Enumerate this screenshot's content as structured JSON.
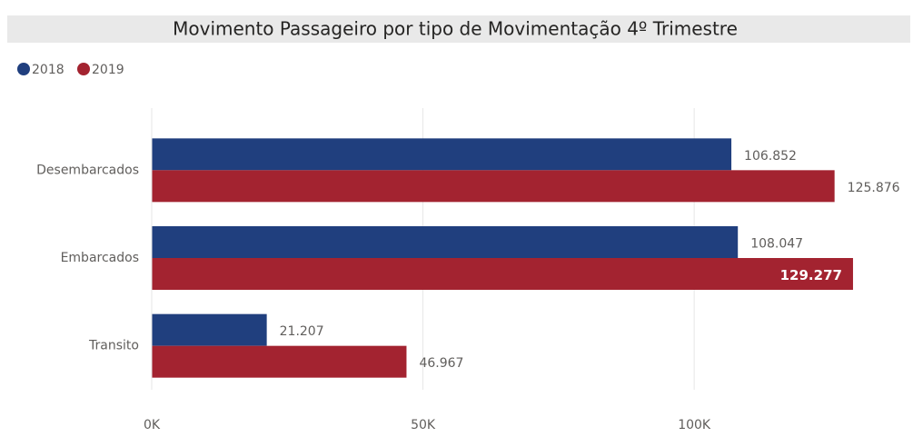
{
  "chart_data": {
    "type": "hbar",
    "title": "Movimento Passageiro por tipo de Movimentação 4º Trimestre",
    "categories": [
      "Desembarcados",
      "Embarcados",
      "Transito"
    ],
    "series": [
      {
        "name": "2018",
        "color": "#203f7e",
        "values": [
          106852,
          108047,
          21207
        ],
        "value_labels": [
          "106.852",
          "108.047",
          "21.207"
        ]
      },
      {
        "name": "2019",
        "color": "#a32330",
        "values": [
          125876,
          129277,
          46967
        ],
        "value_labels": [
          "125.876",
          "129.277",
          "46.967"
        ]
      }
    ],
    "xlim": [
      0,
      140000
    ],
    "xticks": [
      {
        "value": 0,
        "label": "0K"
      },
      {
        "value": 50000,
        "label": "50K"
      },
      {
        "value": 100000,
        "label": "100K"
      }
    ],
    "grid": true,
    "legend": "top-left"
  }
}
